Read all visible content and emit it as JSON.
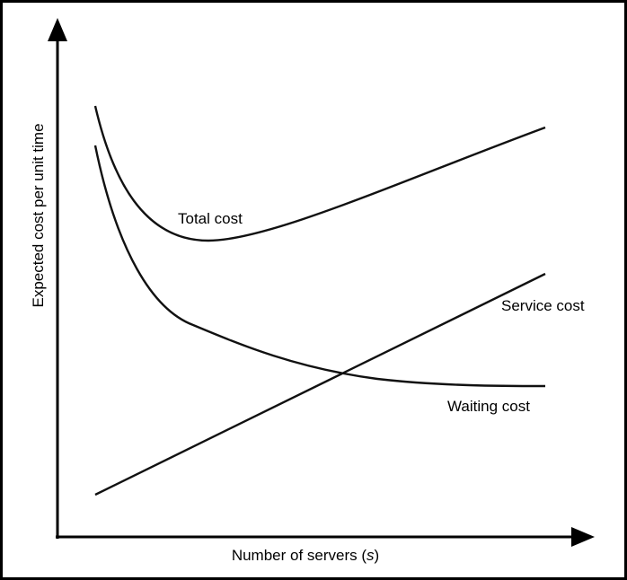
{
  "y_axis": {
    "label": "Expected cost per unit time"
  },
  "x_axis": {
    "label": "Number of servers (",
    "variable": "s",
    "label_end": ")"
  },
  "curves": {
    "total": "Total cost",
    "service": "Service cost",
    "waiting": "Waiting cost"
  }
}
